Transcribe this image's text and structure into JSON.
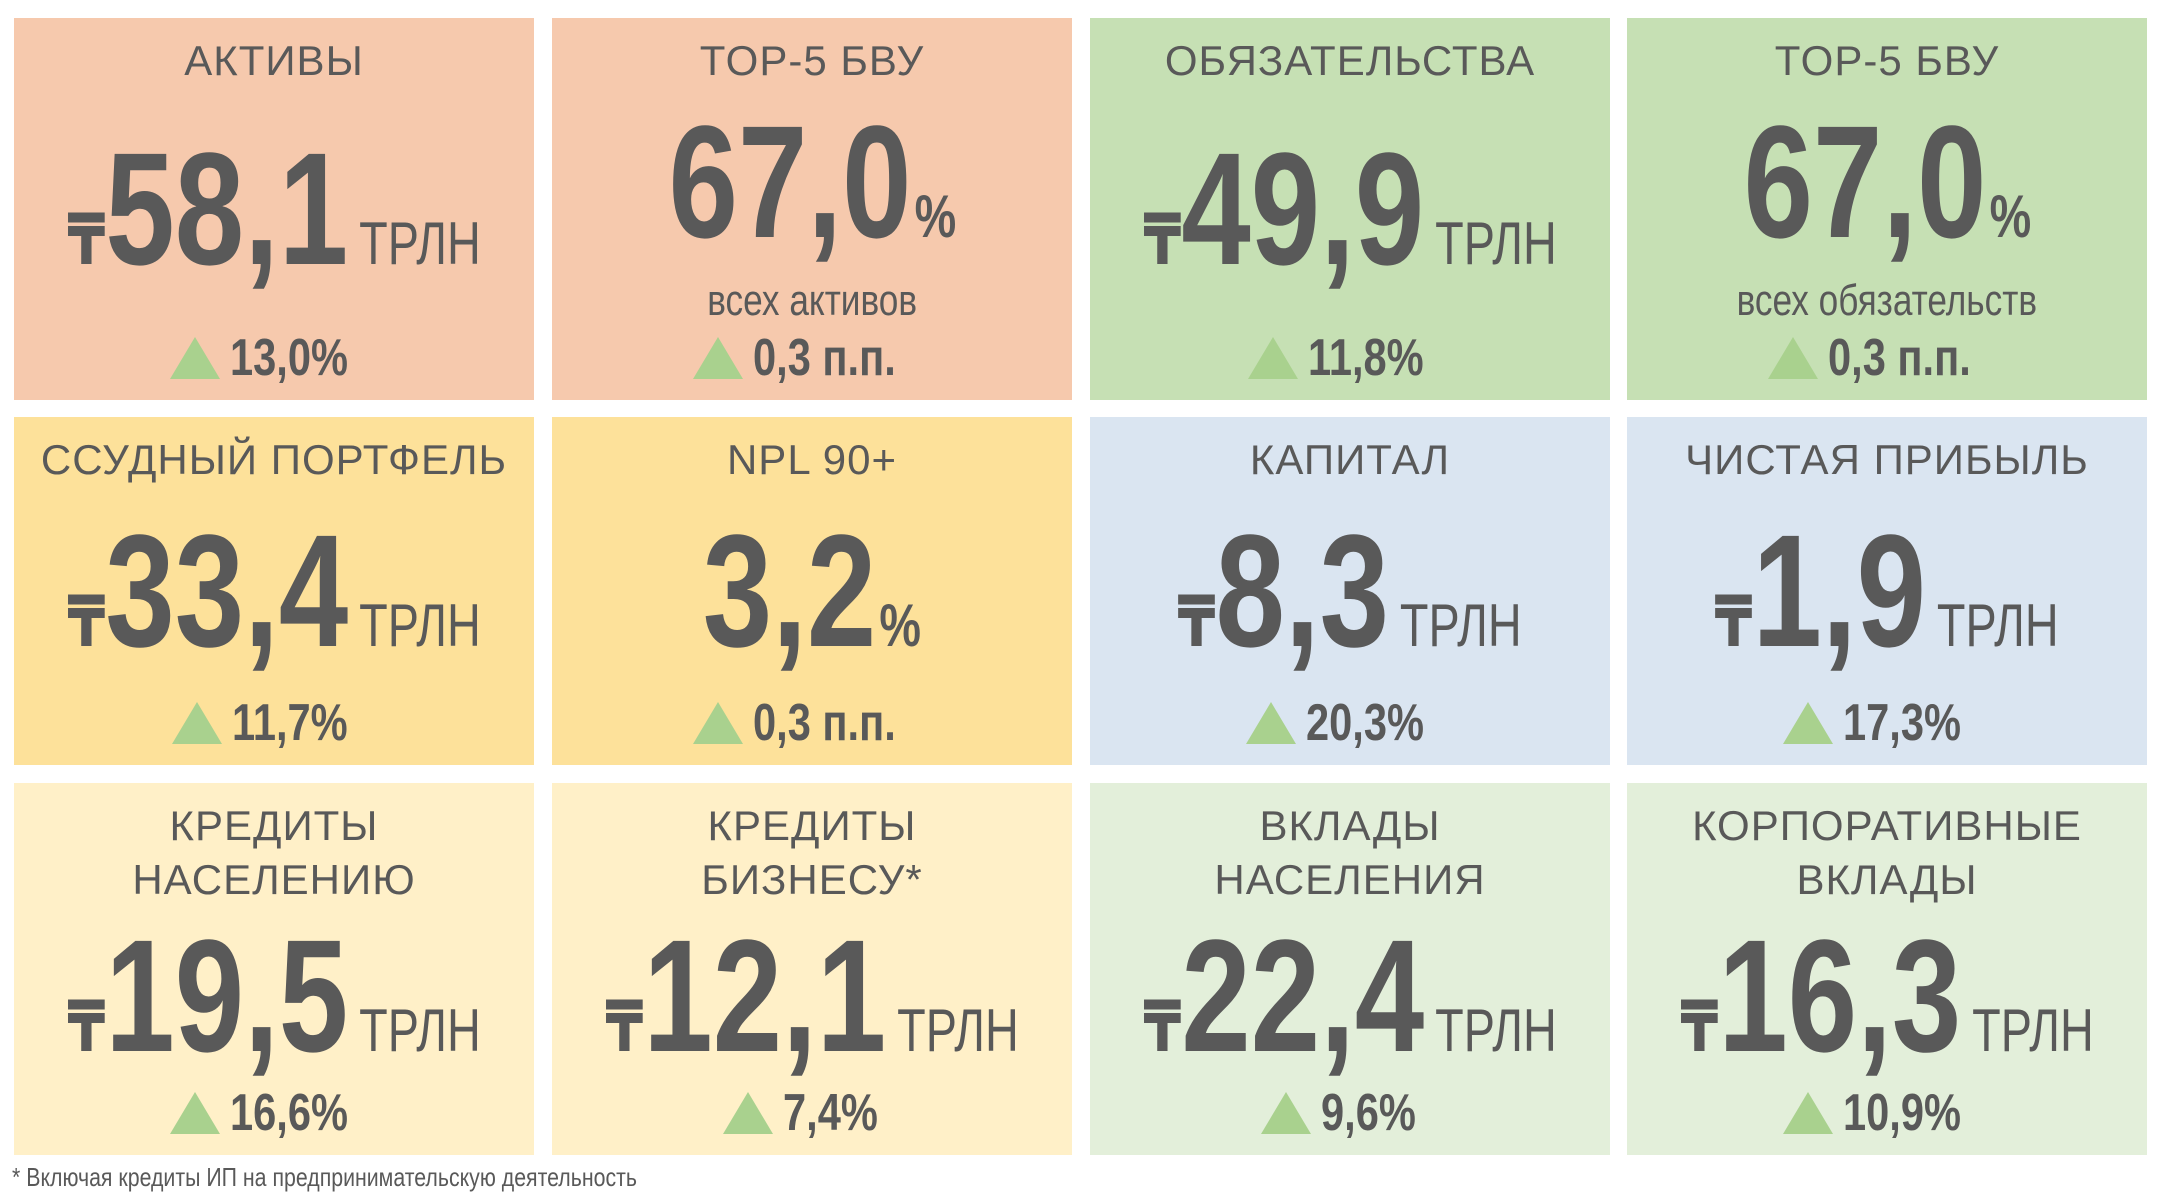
{
  "tiles": [
    {
      "title": [
        "АКТИВЫ"
      ],
      "currency": "₸",
      "value": "58,1",
      "unit": "ТРЛН",
      "change": "13,0%"
    },
    {
      "title": [
        "TOP-5 БВУ"
      ],
      "value": "67,0",
      "unit": "%",
      "subtitle": "всех активов",
      "change": "0,3 п.п."
    },
    {
      "title": [
        "ОБЯЗАТЕЛЬСТВА"
      ],
      "currency": "₸",
      "value": "49,9",
      "unit": "ТРЛН",
      "change": "11,8%"
    },
    {
      "title": [
        "TOP-5 БВУ"
      ],
      "value": "67,0",
      "unit": "%",
      "subtitle": "всех обязательств",
      "change": "0,3 п.п."
    },
    {
      "title": [
        "ССУДНЫЙ ПОРТФЕЛЬ"
      ],
      "currency": "₸",
      "value": "33,4",
      "unit": "ТРЛН",
      "change": "11,7%"
    },
    {
      "title": [
        "NPL 90+"
      ],
      "value": "3,2",
      "unit": "%",
      "change": "0,3 п.п."
    },
    {
      "title": [
        "КАПИТАЛ"
      ],
      "currency": "₸",
      "value": "8,3",
      "unit": "ТРЛН",
      "change": "20,3%"
    },
    {
      "title": [
        "ЧИСТАЯ ПРИБЫЛЬ"
      ],
      "currency": "₸",
      "value": "1,9",
      "unit": "ТРЛН",
      "change": "17,3%"
    },
    {
      "title": [
        "КРЕДИТЫ",
        "НАСЕЛЕНИЮ"
      ],
      "currency": "₸",
      "value": "19,5",
      "unit": "ТРЛН",
      "change": "16,6%"
    },
    {
      "title": [
        "КРЕДИТЫ",
        "БИЗНЕСУ*"
      ],
      "currency": "₸",
      "value": "12,1",
      "unit": "ТРЛН",
      "change": "7,4%"
    },
    {
      "title": [
        "ВКЛАДЫ",
        "НАСЕЛЕНИЯ"
      ],
      "currency": "₸",
      "value": "22,4",
      "unit": "ТРЛН",
      "change": "9,6%"
    },
    {
      "title": [
        "КОРПОРАТИВНЫЕ",
        "ВКЛАДЫ"
      ],
      "currency": "₸",
      "value": "16,3",
      "unit": "ТРЛН",
      "change": "10,9%"
    }
  ],
  "footnote": "* Включая кредиты ИП на предпринимательскую деятельность"
}
